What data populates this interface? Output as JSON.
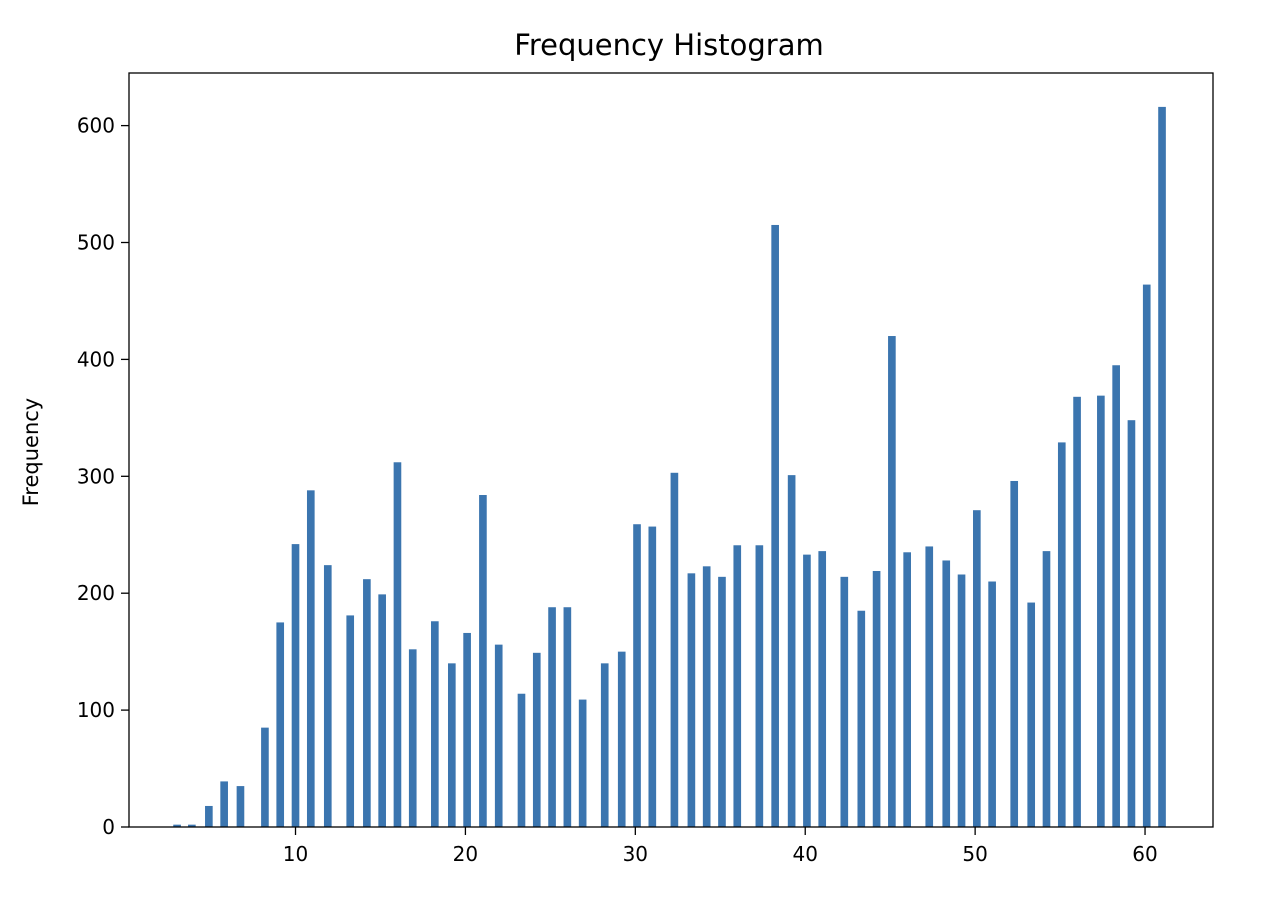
{
  "chart_data": {
    "type": "bar",
    "title": "Frequency Histogram",
    "xlabel": "",
    "ylabel": "Frequency",
    "xlim": [
      0.2,
      64.0
    ],
    "ylim": [
      0,
      645
    ],
    "xticks": [
      10,
      20,
      30,
      40,
      50,
      60
    ],
    "yticks": [
      0,
      100,
      200,
      300,
      400,
      500,
      600
    ],
    "grid": false,
    "bar_width": 0.45,
    "bar_color": "#3b75af",
    "x": [
      3.03,
      3.9,
      4.9,
      5.8,
      6.76,
      8.2,
      9.1,
      10.0,
      10.9,
      11.9,
      13.22,
      14.2,
      15.1,
      16.0,
      16.9,
      18.2,
      19.2,
      20.1,
      21.03,
      21.96,
      23.3,
      24.2,
      25.1,
      26.0,
      26.9,
      28.2,
      29.2,
      30.1,
      31.0,
      32.3,
      33.3,
      34.2,
      35.1,
      36.0,
      37.3,
      38.23,
      39.2,
      40.1,
      41.0,
      42.3,
      43.3,
      44.2,
      45.1,
      46.0,
      47.3,
      48.3,
      49.2,
      50.1,
      51.0,
      52.3,
      53.3,
      54.2,
      55.1,
      56.0,
      57.4,
      58.3,
      59.2,
      60.1,
      61.0
    ],
    "values": [
      2,
      2,
      18,
      39,
      35,
      85,
      175,
      242,
      288,
      224,
      181,
      212,
      199,
      312,
      152,
      176,
      140,
      166,
      284,
      156,
      114,
      149,
      188,
      188,
      109,
      140,
      150,
      259,
      257,
      303,
      217,
      223,
      214,
      241,
      241,
      515,
      301,
      233,
      236,
      214,
      185,
      219,
      420,
      235,
      240,
      228,
      216,
      271,
      210,
      296,
      192,
      236,
      329,
      368,
      369,
      395,
      348,
      464,
      616
    ]
  }
}
